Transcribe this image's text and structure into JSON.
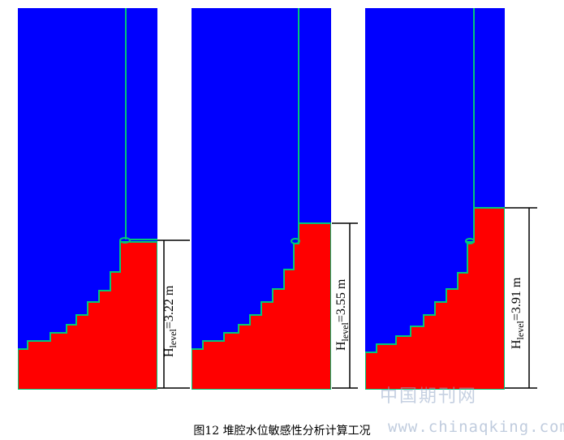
{
  "figure": {
    "caption": "图12  堆腔水位敏感性分析计算工况",
    "colors": {
      "water": "#0000ff",
      "fill": "#ff0000",
      "interface": "#00c878"
    }
  },
  "panels": [
    {
      "label_main": "H",
      "label_sub": "level",
      "label_value": "=3.22 m"
    },
    {
      "label_main": "H",
      "label_sub": "level",
      "label_value": "=3.55 m"
    },
    {
      "label_main": "H",
      "label_sub": "level",
      "label_value": "=3.91 m"
    }
  ],
  "watermark": {
    "cn": "中国期刊网",
    "url": "www.chinaqking.com"
  }
}
